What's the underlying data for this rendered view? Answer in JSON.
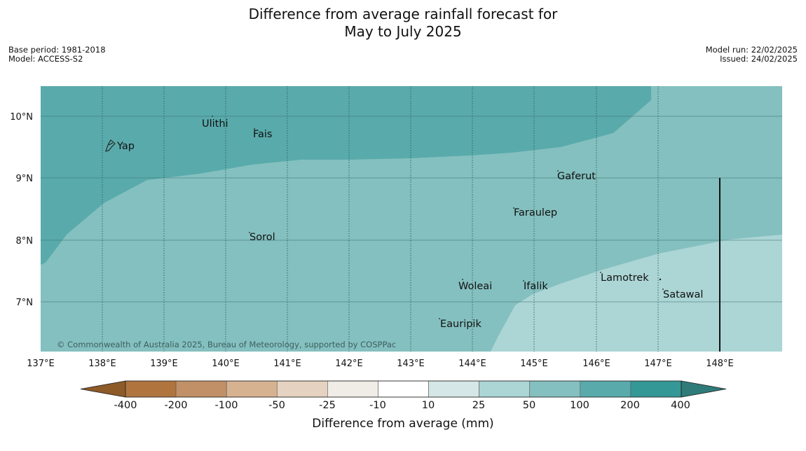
{
  "title": {
    "line1": "Difference from average rainfall forecast for",
    "line2": "May to July 2025"
  },
  "meta": {
    "base_period": "Base period: 1981-2018",
    "model": "Model: ACCESS-S2",
    "model_run": "Model run: 22/02/2025",
    "issued": "Issued: 24/02/2025"
  },
  "map": {
    "lon_labels": [
      "137°E",
      "138°E",
      "139°E",
      "140°E",
      "141°E",
      "142°E",
      "143°E",
      "144°E",
      "145°E",
      "146°E",
      "147°E",
      "148°E"
    ],
    "lat_labels": [
      "10°N",
      "9°N",
      "8°N",
      "7°N"
    ],
    "places": [
      {
        "name": "Ulithi"
      },
      {
        "name": "Fais"
      },
      {
        "name": "Yap"
      },
      {
        "name": "Gaferut"
      },
      {
        "name": "Faraulep"
      },
      {
        "name": "Sorol"
      },
      {
        "name": "Lamotrek"
      },
      {
        "name": "Woleai"
      },
      {
        "name": "Ifalik"
      },
      {
        "name": "Satawal"
      },
      {
        "name": "Eauripik"
      }
    ],
    "copyright": "© Commonwealth of Australia 2025, Bureau of Meteorology, supported by COSPPac"
  },
  "legend": {
    "ticks": [
      "-400",
      "-200",
      "-100",
      "-50",
      "-25",
      "-10",
      "10",
      "25",
      "50",
      "100",
      "200",
      "400"
    ],
    "label": "Difference from average (mm)",
    "colors": {
      "extend_low": "#8e5a28",
      "bins": [
        "#b0743e",
        "#c29066",
        "#d6b291",
        "#e6d2c0",
        "#f0ece6",
        "#ffffff",
        "#d5e8e7",
        "#acd5d5",
        "#84c0bf",
        "#59aaab",
        "#349896"
      ],
      "extend_high": "#2e7b7a"
    }
  }
}
